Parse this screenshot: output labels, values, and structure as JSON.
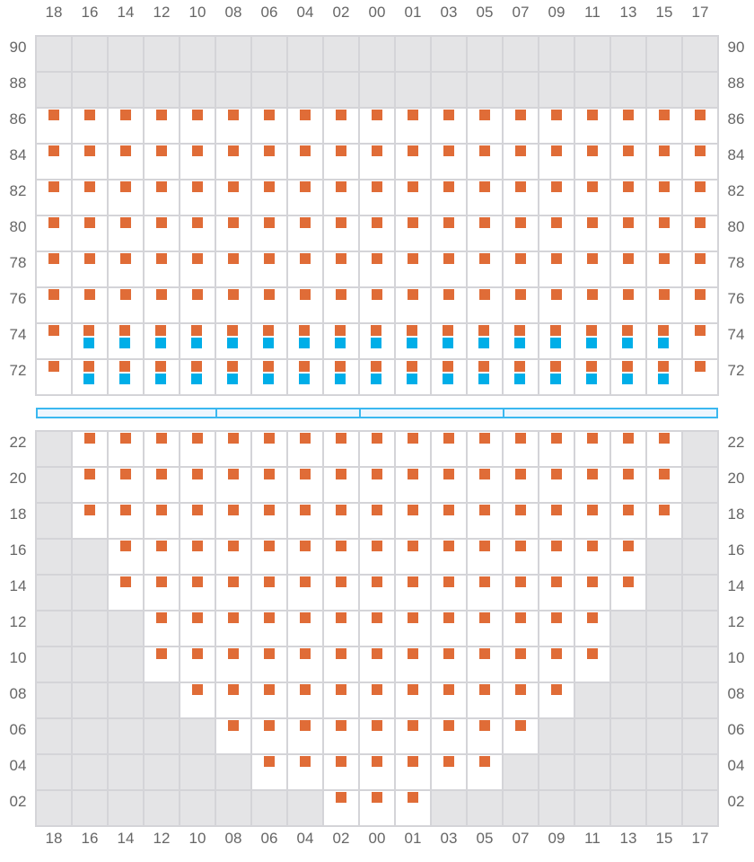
{
  "columns": [
    "18",
    "16",
    "14",
    "12",
    "10",
    "08",
    "06",
    "04",
    "02",
    "00",
    "01",
    "03",
    "05",
    "07",
    "09",
    "11",
    "13",
    "15",
    "17"
  ],
  "legend_codes": {
    "X": "unavailable",
    "O": "orange-marker",
    "B": "orange-and-blue-markers"
  },
  "colors": {
    "orange": "#e06c37",
    "blue": "#00aee8",
    "unavailable": "#e4e4e6",
    "grid": "#d4d4d8",
    "bar_border": "#3bb8f0",
    "bar_fill": "#eef6fe"
  },
  "top_section": {
    "rows": [
      {
        "label": "90",
        "cells": "XXXXXXXXXXXXXXXXXXX"
      },
      {
        "label": "88",
        "cells": "XXXXXXXXXXXXXXXXXXX"
      },
      {
        "label": "86",
        "cells": "OOOOOOOOOOOOOOOOOOO"
      },
      {
        "label": "84",
        "cells": "OOOOOOOOOOOOOOOOOOO"
      },
      {
        "label": "82",
        "cells": "OOOOOOOOOOOOOOOOOOO"
      },
      {
        "label": "80",
        "cells": "OOOOOOOOOOOOOOOOOOO"
      },
      {
        "label": "78",
        "cells": "OOOOOOOOOOOOOOOOOOO"
      },
      {
        "label": "76",
        "cells": "OOOOOOOOOOOOOOOOOOO"
      },
      {
        "label": "74",
        "cells": "OBBBBBBBBBBBBBBBBBO"
      },
      {
        "label": "72",
        "cells": "OBBBBBBBBBBBBBBBBBO"
      }
    ]
  },
  "divider_segments": 4,
  "bottom_section": {
    "rows": [
      {
        "label": "22",
        "cells": "XOOOOOOOOOOOOOOOOOX"
      },
      {
        "label": "20",
        "cells": "XOOOOOOOOOOOOOOOOOX"
      },
      {
        "label": "18",
        "cells": "XOOOOOOOOOOOOOOOOOX"
      },
      {
        "label": "16",
        "cells": "XXOOOOOOOOOOOOOOOXX"
      },
      {
        "label": "14",
        "cells": "XXOOOOOOOOOOOOOOOXX"
      },
      {
        "label": "12",
        "cells": "XXXOOOOOOOOOOOOOXXX"
      },
      {
        "label": "10",
        "cells": "XXXOOOOOOOOOOOOOXXX"
      },
      {
        "label": "08",
        "cells": "XXXXOOOOOOOOOOOXXXX"
      },
      {
        "label": "06",
        "cells": "XXXXXOOOOOOOOOXXXXX"
      },
      {
        "label": "04",
        "cells": "XXXXXXOOOOOOOXXXXXX"
      },
      {
        "label": "02",
        "cells": "XXXXXXXXOOOXXXXXXXX"
      }
    ]
  }
}
